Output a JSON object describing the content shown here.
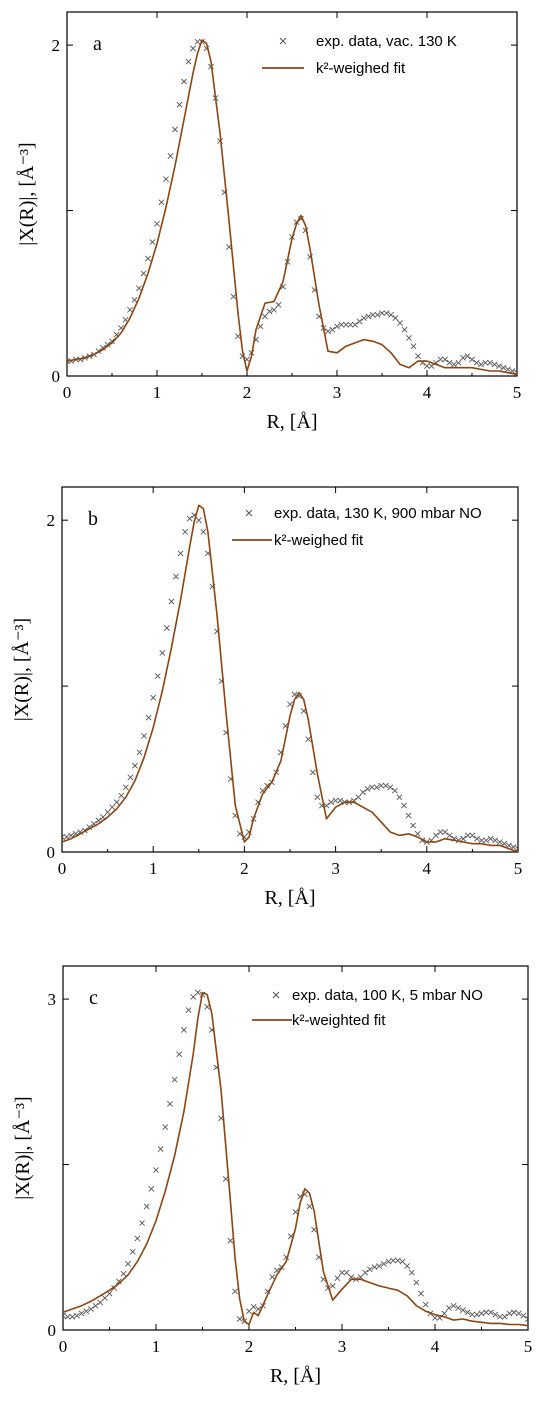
{
  "colors": {
    "fit": "#8b4513",
    "data": "#555555",
    "axis": "#000000"
  },
  "chart_data": [
    {
      "type": "line",
      "panel_label": "a",
      "xlabel": "R, [Å]",
      "ylabel": "|X(R)|, [Å⁻³]",
      "xlim": [
        0,
        5
      ],
      "ylim": [
        0,
        2.2
      ],
      "xticks": [
        0,
        1,
        2,
        3,
        4,
        5
      ],
      "yticks": [
        0,
        1,
        2
      ],
      "ytick_labels": [
        "0",
        "",
        "2"
      ],
      "grid": false,
      "legend_position": "top-right",
      "series": [
        {
          "name": "exp. data, vac. 130 K",
          "style": "markers-x",
          "x": [
            0.0,
            0.05,
            0.1,
            0.15,
            0.2,
            0.25,
            0.3,
            0.35,
            0.4,
            0.45,
            0.5,
            0.55,
            0.6,
            0.65,
            0.7,
            0.75,
            0.8,
            0.85,
            0.9,
            0.95,
            1.0,
            1.05,
            1.1,
            1.15,
            1.2,
            1.25,
            1.3,
            1.35,
            1.4,
            1.45,
            1.5,
            1.55,
            1.6,
            1.65,
            1.7,
            1.75,
            1.8,
            1.85,
            1.9,
            1.95,
            2.0,
            2.05,
            2.1,
            2.15,
            2.2,
            2.25,
            2.3,
            2.35,
            2.4,
            2.45,
            2.5,
            2.55,
            2.6,
            2.65,
            2.7,
            2.75,
            2.8,
            2.85,
            2.9,
            2.95,
            3.0,
            3.05,
            3.1,
            3.15,
            3.2,
            3.25,
            3.3,
            3.35,
            3.4,
            3.45,
            3.5,
            3.55,
            3.6,
            3.65,
            3.7,
            3.75,
            3.8,
            3.85,
            3.9,
            3.95,
            4.0,
            4.05,
            4.1,
            4.15,
            4.2,
            4.25,
            4.3,
            4.35,
            4.4,
            4.45,
            4.5,
            4.55,
            4.6,
            4.65,
            4.7,
            4.75,
            4.8,
            4.85,
            4.9,
            4.95,
            5.0
          ],
          "y": [
            0.09,
            0.09,
            0.1,
            0.1,
            0.11,
            0.12,
            0.13,
            0.15,
            0.17,
            0.19,
            0.21,
            0.25,
            0.29,
            0.34,
            0.4,
            0.46,
            0.53,
            0.62,
            0.71,
            0.81,
            0.92,
            1.05,
            1.19,
            1.33,
            1.49,
            1.64,
            1.78,
            1.9,
            1.98,
            2.02,
            2.02,
            1.98,
            1.87,
            1.68,
            1.42,
            1.11,
            0.78,
            0.48,
            0.24,
            0.12,
            0.1,
            0.14,
            0.22,
            0.3,
            0.36,
            0.39,
            0.4,
            0.43,
            0.54,
            0.69,
            0.84,
            0.93,
            0.95,
            0.88,
            0.72,
            0.52,
            0.36,
            0.29,
            0.27,
            0.28,
            0.3,
            0.31,
            0.31,
            0.31,
            0.31,
            0.33,
            0.35,
            0.36,
            0.37,
            0.37,
            0.38,
            0.38,
            0.37,
            0.35,
            0.32,
            0.28,
            0.23,
            0.18,
            0.12,
            0.08,
            0.06,
            0.06,
            0.08,
            0.1,
            0.1,
            0.08,
            0.07,
            0.08,
            0.11,
            0.12,
            0.1,
            0.08,
            0.07,
            0.08,
            0.08,
            0.07,
            0.06,
            0.05,
            0.04,
            0.03,
            0.02
          ]
        },
        {
          "name": "k²-weighed fit",
          "style": "line",
          "x": [
            0.0,
            0.1,
            0.2,
            0.3,
            0.4,
            0.5,
            0.6,
            0.7,
            0.8,
            0.9,
            1.0,
            1.1,
            1.2,
            1.3,
            1.4,
            1.45,
            1.5,
            1.55,
            1.6,
            1.7,
            1.8,
            1.9,
            1.95,
            2.0,
            2.05,
            2.1,
            2.2,
            2.3,
            2.4,
            2.5,
            2.55,
            2.6,
            2.65,
            2.7,
            2.8,
            2.9,
            3.0,
            3.1,
            3.2,
            3.3,
            3.4,
            3.5,
            3.6,
            3.7,
            3.8,
            3.9,
            4.0,
            4.1,
            4.2,
            4.3,
            4.4,
            4.5,
            4.6,
            4.7,
            4.8,
            4.9,
            5.0
          ],
          "y": [
            0.09,
            0.1,
            0.11,
            0.13,
            0.16,
            0.2,
            0.26,
            0.35,
            0.47,
            0.62,
            0.8,
            1.02,
            1.27,
            1.55,
            1.83,
            1.95,
            2.03,
            2.01,
            1.9,
            1.47,
            0.94,
            0.38,
            0.15,
            0.03,
            0.12,
            0.28,
            0.44,
            0.45,
            0.57,
            0.83,
            0.92,
            0.97,
            0.91,
            0.77,
            0.43,
            0.15,
            0.14,
            0.18,
            0.2,
            0.22,
            0.21,
            0.19,
            0.14,
            0.07,
            0.05,
            0.09,
            0.09,
            0.07,
            0.05,
            0.05,
            0.05,
            0.05,
            0.04,
            0.03,
            0.03,
            0.02,
            0.01
          ]
        }
      ]
    },
    {
      "type": "line",
      "panel_label": "b",
      "xlabel": "R, [Å]",
      "ylabel": "|X(R)|, [Å⁻³]",
      "xlim": [
        0,
        5
      ],
      "ylim": [
        0,
        2.2
      ],
      "xticks": [
        0,
        1,
        2,
        3,
        4,
        5
      ],
      "yticks": [
        0,
        1,
        2
      ],
      "ytick_labels": [
        "0",
        "",
        "2"
      ],
      "grid": false,
      "legend_position": "top-right",
      "series": [
        {
          "name": "exp. data, 130 K, 900 mbar NO",
          "style": "markers-x",
          "x": [
            0.0,
            0.05,
            0.1,
            0.15,
            0.2,
            0.25,
            0.3,
            0.35,
            0.4,
            0.45,
            0.5,
            0.55,
            0.6,
            0.65,
            0.7,
            0.75,
            0.8,
            0.85,
            0.9,
            0.95,
            1.0,
            1.05,
            1.1,
            1.15,
            1.2,
            1.25,
            1.3,
            1.35,
            1.4,
            1.45,
            1.5,
            1.55,
            1.6,
            1.65,
            1.7,
            1.75,
            1.8,
            1.85,
            1.9,
            1.95,
            2.0,
            2.05,
            2.1,
            2.15,
            2.2,
            2.25,
            2.3,
            2.35,
            2.4,
            2.45,
            2.5,
            2.55,
            2.6,
            2.65,
            2.7,
            2.75,
            2.8,
            2.85,
            2.9,
            2.95,
            3.0,
            3.05,
            3.1,
            3.15,
            3.2,
            3.25,
            3.3,
            3.35,
            3.4,
            3.45,
            3.5,
            3.55,
            3.6,
            3.65,
            3.7,
            3.75,
            3.8,
            3.85,
            3.9,
            3.95,
            4.0,
            4.05,
            4.1,
            4.15,
            4.2,
            4.25,
            4.3,
            4.35,
            4.4,
            4.45,
            4.5,
            4.55,
            4.6,
            4.65,
            4.7,
            4.75,
            4.8,
            4.85,
            4.9,
            4.95,
            5.0
          ],
          "y": [
            0.09,
            0.09,
            0.1,
            0.11,
            0.12,
            0.13,
            0.15,
            0.17,
            0.19,
            0.21,
            0.24,
            0.27,
            0.3,
            0.34,
            0.39,
            0.45,
            0.52,
            0.6,
            0.7,
            0.81,
            0.93,
            1.06,
            1.2,
            1.35,
            1.51,
            1.66,
            1.8,
            1.93,
            2.01,
            2.03,
            2.0,
            1.93,
            1.8,
            1.6,
            1.33,
            1.03,
            0.72,
            0.44,
            0.22,
            0.11,
            0.09,
            0.12,
            0.2,
            0.3,
            0.37,
            0.4,
            0.42,
            0.48,
            0.6,
            0.76,
            0.89,
            0.95,
            0.94,
            0.85,
            0.68,
            0.48,
            0.33,
            0.28,
            0.28,
            0.3,
            0.31,
            0.31,
            0.3,
            0.3,
            0.31,
            0.33,
            0.36,
            0.38,
            0.39,
            0.39,
            0.4,
            0.4,
            0.39,
            0.37,
            0.33,
            0.28,
            0.22,
            0.16,
            0.11,
            0.07,
            0.06,
            0.07,
            0.1,
            0.12,
            0.12,
            0.1,
            0.08,
            0.07,
            0.08,
            0.1,
            0.1,
            0.08,
            0.07,
            0.07,
            0.08,
            0.07,
            0.06,
            0.05,
            0.04,
            0.03,
            0.02
          ]
        },
        {
          "name": "k²-weighed fit",
          "style": "line",
          "x": [
            0.0,
            0.1,
            0.2,
            0.3,
            0.4,
            0.5,
            0.6,
            0.7,
            0.8,
            0.9,
            1.0,
            1.1,
            1.2,
            1.3,
            1.4,
            1.45,
            1.5,
            1.55,
            1.6,
            1.7,
            1.8,
            1.9,
            2.0,
            2.05,
            2.1,
            2.2,
            2.3,
            2.4,
            2.5,
            2.55,
            2.6,
            2.65,
            2.7,
            2.8,
            2.9,
            3.0,
            3.1,
            3.2,
            3.3,
            3.4,
            3.5,
            3.6,
            3.7,
            3.8,
            3.9,
            4.0,
            4.1,
            4.2,
            4.3,
            4.4,
            4.5,
            4.6,
            4.7,
            4.8,
            4.9,
            5.0
          ],
          "y": [
            0.06,
            0.08,
            0.11,
            0.14,
            0.17,
            0.21,
            0.26,
            0.33,
            0.43,
            0.57,
            0.75,
            0.97,
            1.23,
            1.52,
            1.84,
            1.99,
            2.09,
            2.07,
            1.93,
            1.43,
            0.83,
            0.28,
            0.06,
            0.09,
            0.2,
            0.35,
            0.42,
            0.55,
            0.82,
            0.92,
            0.96,
            0.92,
            0.8,
            0.47,
            0.2,
            0.27,
            0.3,
            0.3,
            0.27,
            0.24,
            0.18,
            0.12,
            0.1,
            0.11,
            0.09,
            0.06,
            0.06,
            0.08,
            0.07,
            0.06,
            0.05,
            0.05,
            0.04,
            0.04,
            0.02,
            0.0
          ]
        }
      ]
    },
    {
      "type": "line",
      "panel_label": "c",
      "xlabel": "R, [Å]",
      "ylabel": "|X(R)|, [Å⁻³]",
      "xlim": [
        0,
        5
      ],
      "ylim": [
        0,
        3.3
      ],
      "xticks": [
        0,
        1,
        2,
        3,
        4,
        5
      ],
      "yticks": [
        0,
        1.5,
        3
      ],
      "ytick_labels": [
        "0",
        "",
        "3"
      ],
      "grid": false,
      "legend_position": "top-right",
      "series": [
        {
          "name": "exp. data, 100 K, 5 mbar NO",
          "style": "markers-x",
          "x": [
            0.0,
            0.05,
            0.1,
            0.15,
            0.2,
            0.25,
            0.3,
            0.35,
            0.4,
            0.45,
            0.5,
            0.55,
            0.6,
            0.65,
            0.7,
            0.75,
            0.8,
            0.85,
            0.9,
            0.95,
            1.0,
            1.05,
            1.1,
            1.15,
            1.2,
            1.25,
            1.3,
            1.35,
            1.4,
            1.45,
            1.5,
            1.55,
            1.6,
            1.65,
            1.7,
            1.75,
            1.8,
            1.85,
            1.9,
            1.95,
            2.0,
            2.05,
            2.1,
            2.15,
            2.2,
            2.25,
            2.3,
            2.35,
            2.4,
            2.45,
            2.5,
            2.55,
            2.6,
            2.65,
            2.7,
            2.75,
            2.8,
            2.85,
            2.9,
            2.95,
            3.0,
            3.05,
            3.1,
            3.15,
            3.2,
            3.25,
            3.3,
            3.35,
            3.4,
            3.45,
            3.5,
            3.55,
            3.6,
            3.65,
            3.7,
            3.75,
            3.8,
            3.85,
            3.9,
            3.95,
            4.0,
            4.05,
            4.1,
            4.15,
            4.2,
            4.25,
            4.3,
            4.35,
            4.4,
            4.45,
            4.5,
            4.55,
            4.6,
            4.65,
            4.7,
            4.75,
            4.8,
            4.85,
            4.9,
            4.95,
            5.0
          ],
          "y": [
            0.13,
            0.12,
            0.12,
            0.13,
            0.15,
            0.17,
            0.19,
            0.22,
            0.25,
            0.29,
            0.33,
            0.38,
            0.44,
            0.51,
            0.6,
            0.71,
            0.83,
            0.97,
            1.12,
            1.28,
            1.45,
            1.64,
            1.84,
            2.05,
            2.27,
            2.5,
            2.72,
            2.9,
            3.02,
            3.06,
            3.04,
            2.93,
            2.72,
            2.38,
            1.92,
            1.37,
            0.81,
            0.35,
            0.1,
            0.08,
            0.17,
            0.21,
            0.19,
            0.22,
            0.35,
            0.48,
            0.54,
            0.57,
            0.66,
            0.85,
            1.07,
            1.21,
            1.23,
            1.12,
            0.91,
            0.66,
            0.46,
            0.38,
            0.4,
            0.47,
            0.52,
            0.52,
            0.48,
            0.46,
            0.48,
            0.52,
            0.55,
            0.57,
            0.58,
            0.6,
            0.62,
            0.63,
            0.63,
            0.62,
            0.58,
            0.52,
            0.43,
            0.33,
            0.23,
            0.15,
            0.11,
            0.11,
            0.15,
            0.2,
            0.22,
            0.2,
            0.18,
            0.16,
            0.14,
            0.14,
            0.15,
            0.16,
            0.16,
            0.14,
            0.12,
            0.12,
            0.15,
            0.16,
            0.15,
            0.13,
            0.1
          ]
        },
        {
          "name": "k²-weighted fit",
          "style": "line",
          "x": [
            0.0,
            0.1,
            0.2,
            0.3,
            0.4,
            0.5,
            0.6,
            0.7,
            0.8,
            0.9,
            1.0,
            1.1,
            1.2,
            1.3,
            1.4,
            1.45,
            1.5,
            1.55,
            1.6,
            1.7,
            1.8,
            1.85,
            1.9,
            1.95,
            2.0,
            2.05,
            2.1,
            2.2,
            2.3,
            2.4,
            2.5,
            2.55,
            2.6,
            2.65,
            2.7,
            2.8,
            2.9,
            3.0,
            3.1,
            3.2,
            3.3,
            3.4,
            3.5,
            3.6,
            3.7,
            3.8,
            3.9,
            4.0,
            4.1,
            4.2,
            4.3,
            4.4,
            4.5,
            4.6,
            4.7,
            4.8,
            4.9,
            5.0
          ],
          "y": [
            0.16,
            0.19,
            0.22,
            0.26,
            0.31,
            0.36,
            0.42,
            0.5,
            0.62,
            0.78,
            0.99,
            1.26,
            1.58,
            1.98,
            2.5,
            2.82,
            3.06,
            3.04,
            2.87,
            2.17,
            1.17,
            0.65,
            0.28,
            0.08,
            0.05,
            0.16,
            0.13,
            0.32,
            0.5,
            0.62,
            0.92,
            1.15,
            1.28,
            1.24,
            1.08,
            0.53,
            0.27,
            0.37,
            0.46,
            0.46,
            0.43,
            0.4,
            0.38,
            0.36,
            0.31,
            0.22,
            0.17,
            0.14,
            0.12,
            0.09,
            0.1,
            0.08,
            0.07,
            0.06,
            0.06,
            0.05,
            0.05,
            0.04
          ]
        }
      ]
    }
  ]
}
